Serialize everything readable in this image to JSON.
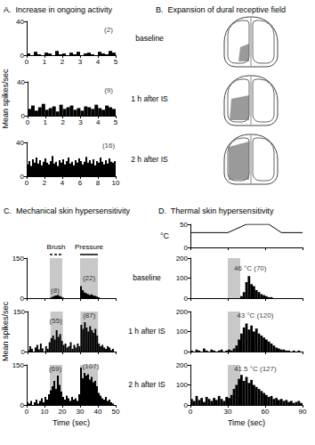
{
  "chart_data": [
    {
      "type": "histogram",
      "title": "A.  Increase in ongoing activity",
      "subtitle": "baseline",
      "bins": [
        0,
        0.2,
        0.4,
        0.6,
        0.8,
        1,
        1.2,
        1.4,
        1.6,
        1.8,
        2,
        2.2,
        2.4,
        2.6,
        2.8,
        3,
        3.2,
        3.4,
        3.6,
        3.8,
        4,
        4.2,
        4.4,
        4.6,
        4.8,
        5
      ],
      "values": [
        2,
        0,
        4,
        1,
        0,
        3,
        2,
        0,
        5,
        1,
        2,
        0,
        3,
        1,
        4,
        0,
        2,
        3,
        1,
        0,
        4,
        2,
        1,
        5,
        3
      ],
      "color": "#000000",
      "xlim": [
        0,
        5
      ],
      "xticks": [
        0,
        1,
        2,
        3,
        4,
        5
      ],
      "ylim": [
        0,
        40
      ],
      "yticks": [
        0,
        40
      ],
      "annotations": [
        {
          "text": "(2)",
          "x": 4.6,
          "y": 30
        }
      ]
    },
    {
      "type": "histogram",
      "subtitle": "1 h after IS",
      "ylabel": "Mean spikes/sec",
      "bins": [
        0,
        0.2,
        0.4,
        0.6,
        0.8,
        1,
        1.2,
        1.4,
        1.6,
        1.8,
        2,
        2.2,
        2.4,
        2.6,
        2.8,
        3,
        3.2,
        3.4,
        3.6,
        3.8,
        4,
        4.2,
        4.4,
        4.6,
        4.8,
        5
      ],
      "values": [
        8,
        12,
        6,
        10,
        14,
        7,
        9,
        11,
        5,
        13,
        8,
        10,
        12,
        7,
        9,
        6,
        11,
        10,
        8,
        13,
        9,
        7,
        12,
        10,
        8
      ],
      "color": "#000000",
      "xlim": [
        0,
        5
      ],
      "xticks": [
        0,
        1,
        2,
        3,
        4,
        5
      ],
      "ylim": [
        0,
        40
      ],
      "yticks": [
        0,
        40
      ],
      "annotations": [
        {
          "text": "(9)",
          "x": 4.6,
          "y": 30
        }
      ]
    },
    {
      "type": "histogram",
      "subtitle": "2 h after IS",
      "bins": [
        0,
        0.2,
        0.4,
        0.6,
        0.8,
        1,
        1.2,
        1.4,
        1.6,
        1.8,
        2,
        2.2,
        2.4,
        2.6,
        2.8,
        3,
        3.2,
        3.4,
        3.6,
        3.8,
        4,
        4.2,
        4.4,
        4.6,
        4.8,
        5,
        5.2,
        5.4,
        5.6,
        5.8,
        6,
        6.2,
        6.4,
        6.6,
        6.8,
        7,
        7.2,
        7.4,
        7.6,
        7.8,
        8,
        8.2,
        8.4,
        8.6,
        8.8,
        9,
        9.2,
        9.4,
        9.6,
        9.8,
        10
      ],
      "values": [
        14,
        18,
        12,
        20,
        16,
        22,
        15,
        19,
        13,
        17,
        21,
        16,
        14,
        18,
        24,
        15,
        17,
        12,
        19,
        16,
        20,
        14,
        18,
        22,
        15,
        17,
        13,
        19,
        16,
        21,
        18,
        14,
        17,
        23,
        16,
        19,
        15,
        20,
        13,
        18,
        16,
        22,
        17,
        14,
        19,
        15,
        21,
        17,
        16,
        18
      ],
      "color": "#000000",
      "xlim": [
        0,
        10
      ],
      "xticks": [
        0,
        2,
        4,
        6,
        8,
        10
      ],
      "ylim": [
        0,
        40
      ],
      "yticks": [
        0,
        40
      ],
      "annotations": [
        {
          "text": "(16)",
          "x": 9.2,
          "y": 36
        }
      ]
    },
    {
      "type": "histogram",
      "title": "C.  Mechanical skin hypersensitivity",
      "subtitle": "baseline",
      "tick_labels": "y",
      "bins": [
        0,
        1,
        2,
        3,
        4,
        5,
        6,
        7,
        8,
        9,
        10,
        11,
        12,
        13,
        14,
        15,
        16,
        17,
        18,
        19,
        20,
        21,
        22,
        23,
        24,
        25,
        26,
        27,
        28,
        29,
        30,
        31,
        32,
        33,
        34,
        35,
        36,
        37,
        38,
        39,
        40,
        41,
        42,
        43,
        44,
        45,
        46,
        47,
        48,
        49,
        50
      ],
      "values": [
        0,
        0,
        0,
        0,
        0,
        0,
        0,
        0,
        0,
        0,
        0,
        0,
        0,
        2,
        5,
        8,
        10,
        12,
        8,
        5,
        2,
        0,
        0,
        0,
        0,
        0,
        0,
        0,
        0,
        0,
        45,
        30,
        22,
        18,
        15,
        12,
        14,
        10,
        8,
        6,
        3,
        0,
        0,
        0,
        0,
        0,
        0,
        0,
        0,
        0
      ],
      "color": "#000000",
      "xlim": [
        0,
        50
      ],
      "xticks": [
        0,
        10,
        20,
        30,
        40,
        50
      ],
      "ylim": [
        0,
        150
      ],
      "yticks": [
        0,
        150
      ],
      "shaded": [
        {
          "label": "Brush",
          "x": [
            13,
            20
          ],
          "line_style": "dashed"
        },
        {
          "label": "Pressure",
          "x": [
            30,
            40
          ],
          "line_style": "solid"
        }
      ],
      "annotations": [
        {
          "text": "(8)",
          "x": 16,
          "y": 30
        },
        {
          "text": "(22)",
          "x": 35,
          "y": 75
        }
      ]
    },
    {
      "type": "histogram",
      "subtitle": "1 h after IS",
      "ylabel": "Mean spikes/sec",
      "tick_labels": "y",
      "bins": [
        0,
        1,
        2,
        3,
        4,
        5,
        6,
        7,
        8,
        9,
        10,
        11,
        12,
        13,
        14,
        15,
        16,
        17,
        18,
        19,
        20,
        21,
        22,
        23,
        24,
        25,
        26,
        27,
        28,
        29,
        30,
        31,
        32,
        33,
        34,
        35,
        36,
        37,
        38,
        39,
        40,
        41,
        42,
        43,
        44,
        45,
        46,
        47,
        48,
        49,
        50
      ],
      "values": [
        5,
        20,
        10,
        0,
        15,
        25,
        8,
        30,
        12,
        0,
        20,
        10,
        35,
        50,
        60,
        45,
        80,
        55,
        65,
        40,
        25,
        30,
        15,
        20,
        35,
        10,
        25,
        15,
        30,
        20,
        100,
        85,
        110,
        90,
        75,
        95,
        80,
        70,
        85,
        60,
        30,
        20,
        25,
        15,
        10,
        20,
        15,
        5,
        10,
        0
      ],
      "color": "#000000",
      "xlim": [
        0,
        50
      ],
      "xticks": [
        0,
        10,
        20,
        30,
        40,
        50
      ],
      "ylim": [
        0,
        150
      ],
      "yticks": [
        0,
        150
      ],
      "shaded": [
        {
          "x": [
            13,
            20
          ]
        },
        {
          "x": [
            30,
            40
          ]
        }
      ],
      "annotations": [
        {
          "text": "(55)",
          "x": 16,
          "y": 115
        },
        {
          "text": "(87)",
          "x": 35,
          "y": 135
        }
      ]
    },
    {
      "type": "histogram",
      "subtitle": "2 h after IS",
      "xlabel": "Time (sec)",
      "bins": [
        0,
        1,
        2,
        3,
        4,
        5,
        6,
        7,
        8,
        9,
        10,
        11,
        12,
        13,
        14,
        15,
        16,
        17,
        18,
        19,
        20,
        21,
        22,
        23,
        24,
        25,
        26,
        27,
        28,
        29,
        30,
        31,
        32,
        33,
        34,
        35,
        36,
        37,
        38,
        39,
        40,
        41,
        42,
        43,
        44,
        45,
        46,
        47,
        48,
        49,
        50
      ],
      "values": [
        10,
        5,
        15,
        0,
        10,
        20,
        5,
        15,
        25,
        10,
        30,
        20,
        40,
        55,
        70,
        90,
        60,
        110,
        75,
        50,
        30,
        20,
        35,
        25,
        15,
        30,
        20,
        25,
        15,
        40,
        140,
        100,
        120,
        110,
        115,
        95,
        105,
        85,
        90,
        70,
        45,
        35,
        25,
        20,
        30,
        15,
        20,
        10,
        5,
        0
      ],
      "color": "#000000",
      "xlim": [
        0,
        50
      ],
      "xticks": [
        0,
        10,
        20,
        30,
        40,
        50
      ],
      "ylim": [
        0,
        150
      ],
      "yticks": [
        0,
        150
      ],
      "shaded": [
        {
          "x": [
            13,
            20
          ]
        },
        {
          "x": [
            30,
            40
          ]
        }
      ],
      "annotations": [
        {
          "text": "(69)",
          "x": 16,
          "y": 135
        },
        {
          "text": "(107)",
          "x": 36,
          "y": 145
        }
      ]
    },
    {
      "type": "line",
      "title": "D.  Thermal skin hypersensitivity",
      "ylabel": "°C",
      "tick_labels": "y",
      "x": [
        0,
        30,
        45,
        63,
        73,
        90
      ],
      "values": [
        32,
        32,
        50,
        50,
        32,
        32
      ],
      "color": "#000000",
      "xlim": [
        0,
        90
      ],
      "xticks": [
        0,
        30,
        60,
        90
      ],
      "ylim": [
        0,
        50
      ],
      "yticks": [
        0,
        50
      ]
    },
    {
      "type": "histogram",
      "tick_labels": "y",
      "bins": [
        0,
        2,
        4,
        6,
        8,
        10,
        12,
        14,
        16,
        18,
        20,
        22,
        24,
        26,
        28,
        30,
        32,
        34,
        36,
        38,
        40,
        42,
        44,
        46,
        48,
        50,
        52,
        54,
        56,
        58,
        60,
        62,
        64,
        66,
        68,
        70,
        72,
        74,
        76,
        78,
        80,
        82,
        84,
        86,
        88,
        90
      ],
      "values": [
        0,
        0,
        0,
        0,
        0,
        0,
        0,
        0,
        0,
        0,
        0,
        0,
        0,
        0,
        0,
        0,
        0,
        0,
        0,
        0,
        10,
        30,
        80,
        110,
        70,
        60,
        40,
        30,
        20,
        15,
        10,
        5,
        5,
        0,
        0,
        0,
        0,
        0,
        0,
        0,
        0,
        0,
        0,
        0,
        0
      ],
      "color": "#000000",
      "xlim": [
        0,
        90
      ],
      "xticks": [
        0,
        30,
        60,
        90
      ],
      "ylim": [
        0,
        200
      ],
      "yticks": [
        0,
        100,
        200
      ],
      "shaded": [
        {
          "x": [
            30,
            40
          ]
        }
      ],
      "annotations": [
        {
          "text": "46 °C (70)",
          "x": 48,
          "y": 150
        }
      ]
    },
    {
      "type": "histogram",
      "tick_labels": "y",
      "bins": [
        0,
        2,
        4,
        6,
        8,
        10,
        12,
        14,
        16,
        18,
        20,
        22,
        24,
        26,
        28,
        30,
        32,
        34,
        36,
        38,
        40,
        42,
        44,
        46,
        48,
        50,
        52,
        54,
        56,
        58,
        60,
        62,
        64,
        66,
        68,
        70,
        72,
        74,
        76,
        78,
        80,
        82,
        84,
        86,
        88,
        90
      ],
      "values": [
        5,
        0,
        10,
        5,
        0,
        15,
        5,
        0,
        10,
        5,
        0,
        5,
        10,
        0,
        5,
        10,
        5,
        15,
        30,
        60,
        90,
        120,
        140,
        110,
        130,
        100,
        115,
        90,
        80,
        70,
        60,
        50,
        40,
        30,
        20,
        15,
        10,
        10,
        5,
        5,
        0,
        5,
        0,
        5,
        0
      ],
      "color": "#000000",
      "xlim": [
        0,
        90
      ],
      "xticks": [
        0,
        30,
        60,
        90
      ],
      "ylim": [
        0,
        200
      ],
      "yticks": [
        0,
        100,
        200
      ],
      "shaded": [
        {
          "x": [
            30,
            40
          ]
        }
      ],
      "annotations": [
        {
          "text": "43 °C (120)",
          "x": 52,
          "y": 178
        }
      ]
    },
    {
      "type": "histogram",
      "xlabel": "Time (sec)",
      "bins": [
        0,
        2,
        4,
        6,
        8,
        10,
        12,
        14,
        16,
        18,
        20,
        22,
        24,
        26,
        28,
        30,
        32,
        34,
        36,
        38,
        40,
        42,
        44,
        46,
        48,
        50,
        52,
        54,
        56,
        58,
        60,
        62,
        64,
        66,
        68,
        70,
        72,
        74,
        76,
        78,
        80,
        82,
        84,
        86,
        88,
        90
      ],
      "values": [
        30,
        20,
        45,
        25,
        35,
        15,
        40,
        30,
        20,
        35,
        25,
        45,
        30,
        20,
        40,
        35,
        50,
        80,
        100,
        130,
        150,
        120,
        140,
        110,
        125,
        100,
        90,
        80,
        70,
        60,
        50,
        40,
        45,
        30,
        35,
        25,
        30,
        20,
        25,
        15,
        20,
        10,
        15,
        20,
        10
      ],
      "color": "#000000",
      "xlim": [
        0,
        90
      ],
      "xticks": [
        0,
        30,
        60,
        90
      ],
      "ylim": [
        0,
        200
      ],
      "yticks": [
        0,
        100,
        200
      ],
      "shaded": [
        {
          "x": [
            30,
            40
          ]
        }
      ],
      "annotations": [
        {
          "text": "41.5 °C (127)",
          "x": 52,
          "y": 180
        }
      ]
    }
  ],
  "diagram": {
    "title": "B.  Expansion of dural receptive field",
    "skulls": 3
  }
}
